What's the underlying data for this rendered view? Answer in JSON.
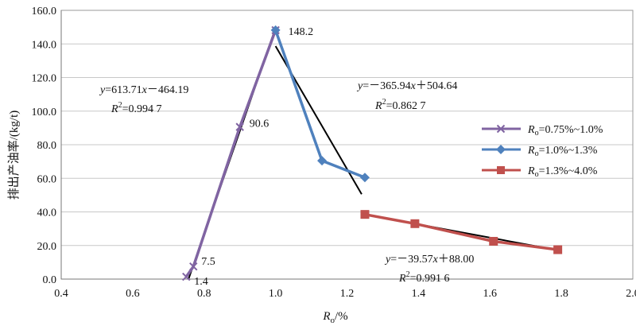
{
  "chart_data": {
    "type": "line",
    "xlabel_main": "R",
    "xlabel_sub": "o",
    "xlabel_unit": "/%",
    "ylabel": "排出产油率/(kg/t)",
    "xlim": [
      0.4,
      2.0
    ],
    "ylim": [
      0,
      160
    ],
    "x_ticks": [
      "0.4",
      "0.6",
      "0.8",
      "1.0",
      "1.2",
      "1.4",
      "1.6",
      "1.8",
      "2.0"
    ],
    "y_ticks": [
      "0.0",
      "20.0",
      "40.0",
      "60.0",
      "80.0",
      "100.0",
      "120.0",
      "140.0",
      "160.0"
    ],
    "grid": "horizontal",
    "legend_position": "right",
    "series": [
      {
        "name": "Ro=0.75%~1.0%",
        "legend_var": "R",
        "legend_sub": "o",
        "legend_rest": "=0.75%~1.0%",
        "color": "#8064A2",
        "marker": "x",
        "x": [
          0.75,
          0.77,
          0.9,
          1.0
        ],
        "y": [
          1.4,
          7.5,
          90.6,
          148.2
        ]
      },
      {
        "name": "Ro=1.0%~1.3%",
        "legend_var": "R",
        "legend_sub": "o",
        "legend_rest": "=1.0%~1.3%",
        "color": "#4F81BD",
        "marker": "diamond",
        "x": [
          1.0,
          1.13,
          1.25
        ],
        "y": [
          148.2,
          70.5,
          60.5
        ]
      },
      {
        "name": "Ro=1.3%~4.0%",
        "legend_var": "R",
        "legend_sub": "o",
        "legend_rest": "=1.3%~4.0%",
        "color": "#C0504D",
        "marker": "square",
        "x": [
          1.25,
          1.39,
          1.61,
          1.79
        ],
        "y": [
          38.5,
          33.0,
          22.5,
          17.5
        ]
      }
    ],
    "data_labels": [
      {
        "text": "148.2",
        "x": 1.0,
        "y": 148.2
      },
      {
        "text": "90.6",
        "x": 0.9,
        "y": 90.6
      },
      {
        "text": "7.5",
        "x": 0.77,
        "y": 7.5
      },
      {
        "text": "1.4",
        "x": 0.75,
        "y": 1.4
      }
    ],
    "trendlines": [
      {
        "slope": 613.71,
        "intercept": -464.19,
        "x_range": [
          0.757,
          1.0
        ]
      },
      {
        "slope": -365.94,
        "intercept": 504.64,
        "x_range": [
          1.0,
          1.241
        ]
      },
      {
        "slope": -39.57,
        "intercept": 88.0,
        "x_range": [
          1.25,
          1.79
        ]
      }
    ],
    "annotations": [
      {
        "eq_var": "y",
        "eq_mid": "=613.71",
        "eq_var2": "x",
        "eq_end": "－464.19",
        "r2_rest": "=0.994 7"
      },
      {
        "eq_var": "y",
        "eq_mid": "=－365.94",
        "eq_var2": "x",
        "eq_end": "＋504.64",
        "r2_rest": "=0.862 7"
      },
      {
        "eq_var": "y",
        "eq_mid": "=－39.57",
        "eq_var2": "x",
        "eq_end": "＋88.00",
        "r2_rest": "=0.991 6"
      }
    ],
    "r2_letter": "R",
    "r2_power": "2"
  }
}
